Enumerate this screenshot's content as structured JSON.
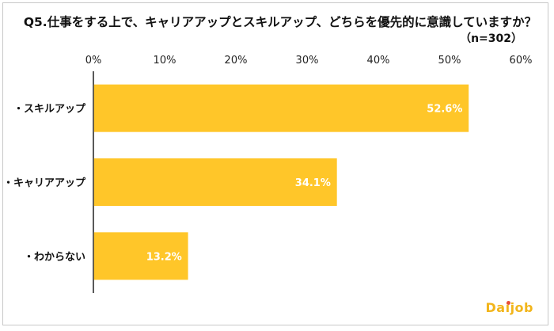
{
  "chart_data": {
    "type": "bar",
    "orientation": "horizontal",
    "title": "Q5.仕事をする上で、キャリアアップとスキルアップ、どちらを優先的に意識していますか？",
    "subtitle": "（n=302）",
    "categories": [
      "・スキルアップ",
      "・キャリアアップ",
      "・わからない"
    ],
    "values": [
      52.6,
      34.1,
      13.2
    ],
    "data_labels": [
      "52.6%",
      "34.1%",
      "13.2%"
    ],
    "xlim": [
      0,
      60
    ],
    "x_ticks": [
      0,
      10,
      20,
      30,
      40,
      50,
      60
    ],
    "x_tick_labels": [
      "0%",
      "10%",
      "20%",
      "30%",
      "40%",
      "50%",
      "60%"
    ],
    "x_axis_position": "top",
    "grid": false,
    "bar_color": "#FFC629",
    "label_color": "#ffffff"
  },
  "logo": {
    "text": "Daijob",
    "color": "#F2B51B",
    "dot_color": "#E94E3C"
  }
}
